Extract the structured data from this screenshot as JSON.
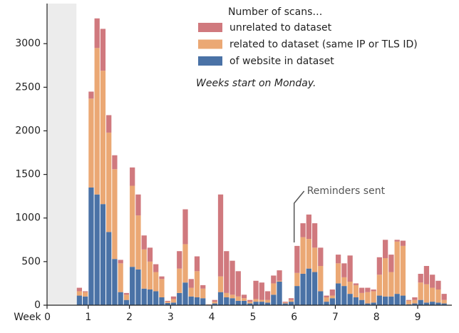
{
  "chart_data": {
    "type": "stacked_bar",
    "legend_title": "Number of scans…",
    "note": "Weeks start on Monday.",
    "annotation": {
      "text": "Reminders sent",
      "x": 6,
      "y": 720
    },
    "shaded_span": [
      0,
      0.714
    ],
    "x": [
      0.714,
      0.857,
      1,
      1.143,
      1.286,
      1.429,
      1.571,
      1.714,
      1.857,
      2,
      2.143,
      2.286,
      2.429,
      2.571,
      2.714,
      2.857,
      3,
      3.143,
      3.286,
      3.429,
      3.571,
      3.714,
      3.857,
      4,
      4.143,
      4.286,
      4.429,
      4.571,
      4.714,
      4.857,
      5,
      5.143,
      5.286,
      5.429,
      5.571,
      5.714,
      5.857,
      6,
      6.143,
      6.286,
      6.429,
      6.571,
      6.714,
      6.857,
      7,
      7.143,
      7.286,
      7.429,
      7.571,
      7.714,
      7.857,
      8,
      8.143,
      8.286,
      8.429,
      8.571,
      8.714,
      8.857,
      9,
      9.143,
      9.286,
      9.429,
      9.571
    ],
    "series": [
      {
        "name": "of website in dataset",
        "color": "#4a72a6",
        "values": [
          110,
          100,
          1350,
          1270,
          1160,
          840,
          530,
          150,
          60,
          440,
          410,
          190,
          180,
          160,
          90,
          25,
          30,
          140,
          260,
          100,
          90,
          80,
          5,
          20,
          150,
          90,
          80,
          50,
          50,
          20,
          40,
          40,
          30,
          120,
          270,
          20,
          40,
          220,
          360,
          420,
          380,
          160,
          40,
          80,
          250,
          220,
          130,
          90,
          60,
          20,
          30,
          110,
          100,
          100,
          130,
          110,
          10,
          20,
          60,
          30,
          40,
          30,
          20
        ]
      },
      {
        "name": "related to dataset (same IP or TLS ID)",
        "color": "#eba874",
        "values": [
          50,
          50,
          1020,
          1680,
          1530,
          1140,
          1030,
          330,
          60,
          930,
          620,
          450,
          320,
          220,
          210,
          15,
          40,
          280,
          440,
          100,
          300,
          110,
          3,
          20,
          180,
          50,
          40,
          50,
          30,
          20,
          30,
          20,
          30,
          130,
          10,
          10,
          20,
          150,
          420,
          340,
          280,
          290,
          50,
          30,
          230,
          100,
          140,
          140,
          80,
          130,
          130,
          240,
          440,
          280,
          600,
          570,
          40,
          40,
          200,
          210,
          160,
          150,
          40
        ]
      },
      {
        "name": "unrelated to dataset",
        "color": "#d0797e",
        "values": [
          40,
          10,
          80,
          340,
          480,
          200,
          160,
          40,
          20,
          210,
          240,
          160,
          160,
          90,
          30,
          10,
          30,
          200,
          400,
          100,
          170,
          40,
          2,
          20,
          940,
          480,
          390,
          290,
          40,
          20,
          210,
          200,
          100,
          90,
          120,
          10,
          20,
          310,
          160,
          280,
          280,
          210,
          20,
          70,
          100,
          160,
          300,
          20,
          60,
          50,
          20,
          200,
          210,
          200,
          20,
          60,
          10,
          30,
          100,
          210,
          150,
          100,
          70
        ]
      }
    ],
    "xlim": [
      0,
      9.83
    ],
    "xticks": [
      {
        "value": 0,
        "label": "Week 0"
      },
      1,
      2,
      3,
      4,
      5,
      6,
      7,
      8,
      9
    ],
    "ylim": [
      0,
      3460
    ],
    "yticks": [
      0,
      500,
      1000,
      1500,
      2000,
      2500,
      3000
    ]
  }
}
